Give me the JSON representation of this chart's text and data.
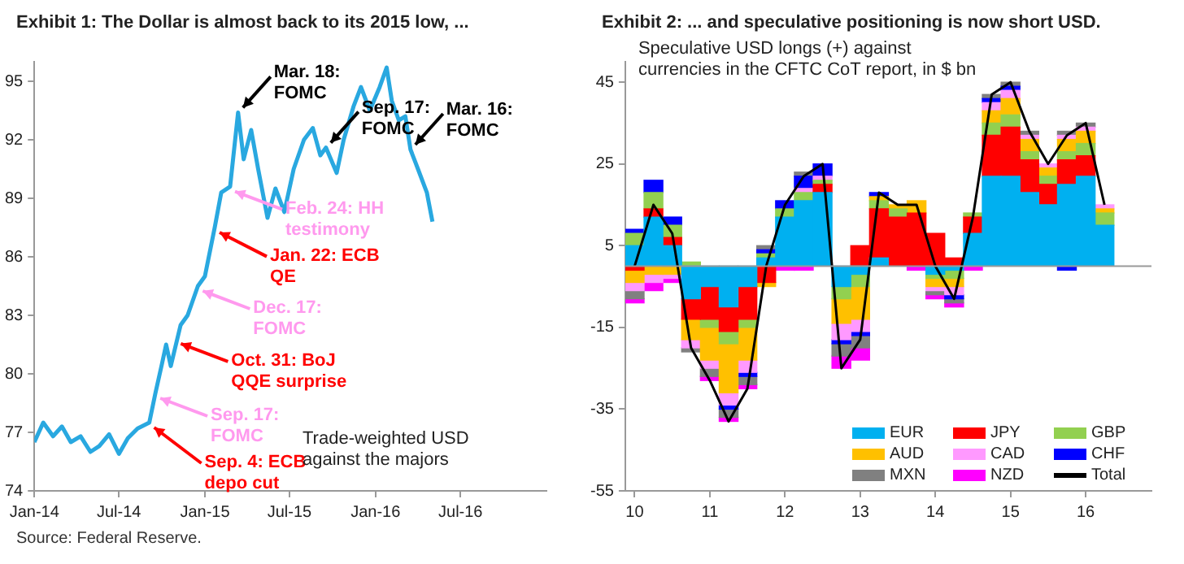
{
  "chart_data": [
    {
      "type": "line",
      "title": "Exhibit 1: The Dollar is almost back to its 2015 low, ...",
      "x": [
        "2014-01-01",
        "2014-01-20",
        "2014-02-10",
        "2014-03-01",
        "2014-03-20",
        "2014-04-10",
        "2014-05-01",
        "2014-05-20",
        "2014-06-10",
        "2014-07-01",
        "2014-07-20",
        "2014-08-10",
        "2014-09-04",
        "2014-09-17",
        "2014-10-01",
        "2014-10-10",
        "2014-10-20",
        "2014-11-10",
        "2014-11-25",
        "2014-12-17",
        "2015-01-01",
        "2015-01-22",
        "2015-02-05",
        "2015-02-24",
        "2015-03-13",
        "2015-03-25",
        "2015-04-10",
        "2015-04-25",
        "2015-05-15",
        "2015-06-01",
        "2015-06-20",
        "2015-07-10",
        "2015-08-01",
        "2015-08-20",
        "2015-09-05",
        "2015-09-17",
        "2015-10-10",
        "2015-10-25",
        "2015-11-15",
        "2015-12-01",
        "2015-12-20",
        "2016-01-10",
        "2016-01-25",
        "2016-02-05",
        "2016-02-20",
        "2016-03-05",
        "2016-03-16",
        "2016-04-01",
        "2016-04-20",
        "2016-05-02"
      ],
      "series": [
        {
          "color": "#29a8e0",
          "values": [
            76.5,
            77.5,
            76.8,
            77.3,
            76.5,
            76.8,
            76.0,
            76.3,
            76.9,
            75.9,
            76.7,
            77.2,
            77.5,
            79.0,
            80.5,
            81.5,
            80.4,
            82.5,
            83.0,
            84.5,
            85.0,
            87.5,
            89.3,
            89.6,
            93.4,
            91.0,
            92.5,
            90.5,
            88.0,
            89.5,
            88.3,
            90.5,
            92.0,
            92.6,
            91.2,
            91.6,
            90.3,
            92.0,
            93.7,
            94.7,
            93.5,
            94.7,
            95.7,
            94.0,
            93.0,
            93.2,
            91.5,
            90.5,
            89.3,
            87.8
          ]
        }
      ],
      "xlim": [
        "2014-01-01",
        "2017-01-01"
      ],
      "xticks": [
        {
          "value": "2014-01-01",
          "label": "Jan-14"
        },
        {
          "value": "2014-07-01",
          "label": "Jul-14"
        },
        {
          "value": "2015-01-01",
          "label": "Jan-15"
        },
        {
          "value": "2015-07-01",
          "label": "Jul-15"
        },
        {
          "value": "2016-01-01",
          "label": "Jan-16"
        },
        {
          "value": "2016-07-01",
          "label": "Jul-16"
        }
      ],
      "ylim": [
        74,
        96
      ],
      "yticks": [
        74,
        77,
        80,
        83,
        86,
        89,
        92,
        95
      ],
      "grid": false,
      "legend": false,
      "marker": "none",
      "line_style": "solid",
      "annotations": [
        {
          "text": "Mar. 18: FOMC",
          "x": "2015-03-13",
          "y": 93.4
        },
        {
          "text": "Sep. 17: FOMC",
          "x": "2015-09-17",
          "y": 91.6
        },
        {
          "text": "Mar. 16: FOMC",
          "x": "2016-03-16",
          "y": 91.5
        },
        {
          "text": "Feb. 24: HH testimony",
          "x": "2015-02-24",
          "y": 89.6
        },
        {
          "text": "Jan. 22: ECB QE",
          "x": "2015-01-22",
          "y": 87.5
        },
        {
          "text": "Dec. 17: FOMC",
          "x": "2014-12-17",
          "y": 84.5
        },
        {
          "text": "Oct. 31: BoJ QQE surprise",
          "x": "2014-10-31",
          "y": 81.8
        },
        {
          "text": "Sep. 17: FOMC",
          "x": "2014-09-17",
          "y": 79.0
        },
        {
          "text": "Sep. 4: ECB depo cut",
          "x": "2014-09-04",
          "y": 77.5
        },
        "Trade-weighted USD against the majors",
        "Source: Federal Reserve."
      ]
    },
    {
      "type": "bar",
      "stacked": true,
      "title": "Exhibit 2: ... and speculative positioning is now short USD.",
      "subtitle": "Speculative USD longs (+) against currencies in the CFTC CoT report, in $ bn",
      "categories": [
        "10",
        null,
        null,
        null,
        "11",
        null,
        null,
        null,
        "12",
        null,
        null,
        null,
        "13",
        null,
        null,
        null,
        "14",
        null,
        null,
        null,
        "15",
        null,
        null,
        null,
        "16",
        null,
        null,
        null
      ],
      "series": [
        {
          "name": "EUR",
          "color": "#00b0f0",
          "values": [
            5,
            12,
            5,
            -8,
            -5,
            -10,
            -5,
            2,
            12,
            16,
            18,
            -5,
            -2,
            2,
            0,
            0,
            -2,
            -1,
            8,
            22,
            22,
            18,
            15,
            20,
            22,
            10,
            null,
            null
          ]
        },
        {
          "name": "JPY",
          "color": "#ff0000",
          "values": [
            -1,
            2,
            2,
            -5,
            -8,
            -6,
            -8,
            -4,
            0,
            0,
            2,
            0,
            5,
            12,
            12,
            13,
            8,
            2,
            4,
            10,
            12,
            8,
            5,
            6,
            5,
            0,
            null,
            null
          ]
        },
        {
          "name": "GBP",
          "color": "#92d050",
          "values": [
            3,
            4,
            3,
            1,
            -2,
            -3,
            -2,
            1,
            2,
            2,
            1,
            -3,
            -3,
            2,
            2,
            0,
            -1,
            -2,
            1,
            3,
            3,
            2,
            2,
            2,
            3,
            3,
            null,
            null
          ]
        },
        {
          "name": "AUD",
          "color": "#ffc000",
          "values": [
            -3,
            -2,
            -2,
            -5,
            -8,
            -12,
            -8,
            -1,
            0,
            0,
            0,
            -6,
            -8,
            1,
            1,
            3,
            -2,
            -2,
            0,
            3,
            4,
            3,
            2,
            3,
            3,
            1,
            null,
            null
          ]
        },
        {
          "name": "CAD",
          "color": "#ff99ff",
          "values": [
            -2,
            -2,
            -1,
            -2,
            -2,
            -3,
            -3,
            0,
            0,
            1,
            1,
            -4,
            -3,
            0,
            0,
            0,
            -1,
            -2,
            0,
            2,
            2,
            1,
            1,
            1,
            1,
            1,
            null,
            null
          ]
        },
        {
          "name": "CHF",
          "color": "#0000ff",
          "values": [
            1,
            3,
            2,
            0,
            0,
            -1,
            -1,
            1,
            2,
            3,
            3,
            -1,
            -1,
            1,
            0,
            0,
            0,
            -1,
            0,
            1,
            1,
            0,
            0,
            -1,
            0,
            0,
            null,
            null
          ]
        },
        {
          "name": "MXN",
          "color": "#808080",
          "values": [
            -2,
            0,
            0,
            -1,
            -2,
            -2,
            -2,
            1,
            0,
            1,
            0,
            -3,
            -3,
            0,
            0,
            0,
            -1,
            -1,
            0,
            1,
            1,
            1,
            0,
            1,
            1,
            0,
            null,
            null
          ]
        },
        {
          "name": "NZD",
          "color": "#ff00ff",
          "values": [
            -1,
            -2,
            -1,
            0,
            -1,
            -1,
            -1,
            0,
            -1,
            -1,
            0,
            -3,
            -3,
            0,
            0,
            -1,
            -1,
            -1,
            -1,
            0,
            0,
            0,
            0,
            0,
            0,
            0,
            null,
            null
          ]
        },
        {
          "name": "Total",
          "type": "line",
          "color": "#000000",
          "values": [
            0,
            15,
            8,
            -20,
            -28,
            -38,
            -30,
            0,
            15,
            22,
            25,
            -25,
            -18,
            18,
            15,
            15,
            0,
            -8,
            12,
            42,
            45,
            33,
            25,
            32,
            35,
            15,
            null,
            null
          ]
        }
      ],
      "ylim": [
        -55,
        50
      ],
      "yticks": [
        -55,
        -35,
        -15,
        5,
        25,
        45
      ],
      "grid": false,
      "legend": "bottom right",
      "marker": "none",
      "line_style": "solid"
    }
  ]
}
